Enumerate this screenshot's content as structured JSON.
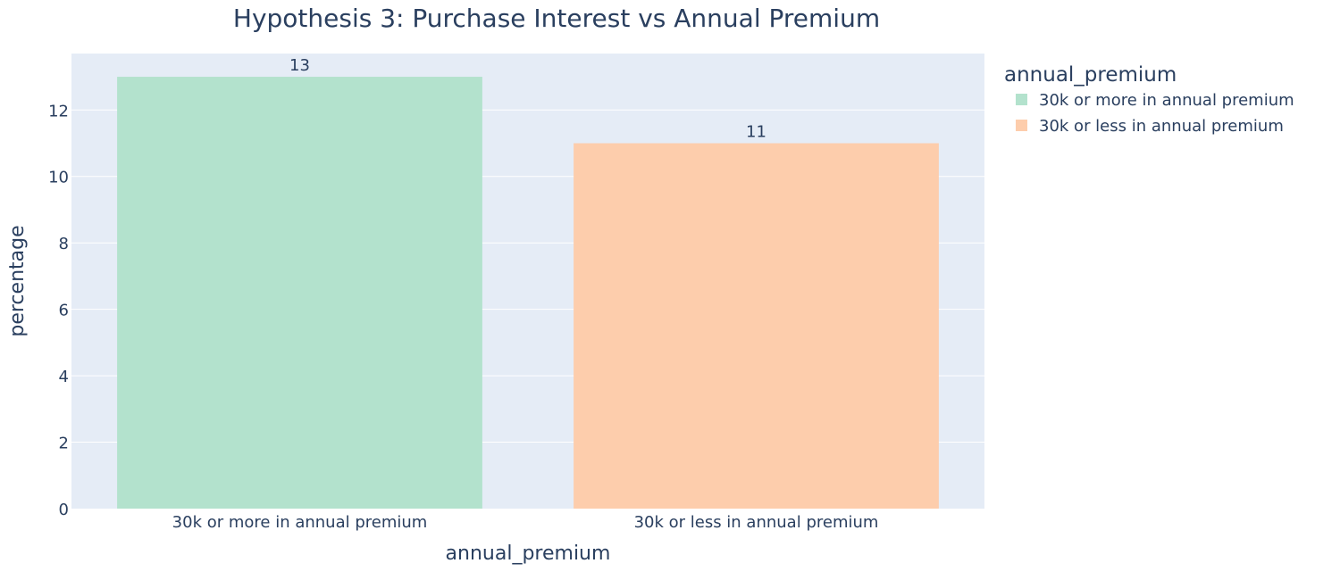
{
  "chart_data": {
    "type": "bar",
    "title": "Hypothesis 3: Purchase Interest vs Annual Premium",
    "xlabel": "annual_premium",
    "ylabel": "percentage",
    "categories": [
      "30k or more in annual premium",
      "30k or less in annual premium"
    ],
    "values": [
      13,
      11
    ],
    "data_labels": [
      "13",
      "11"
    ],
    "ylim": [
      0,
      13.7
    ],
    "yticks": [
      0,
      2,
      4,
      6,
      8,
      10,
      12
    ],
    "grid": true,
    "legend": {
      "title": "annual_premium",
      "placement": "top-right",
      "entries": [
        "30k or more in annual premium",
        "30k or less in annual premium"
      ]
    },
    "colors": [
      "#b3e2cd",
      "#fdcdac"
    ],
    "plot_background": "#e5ecf6",
    "grid_color": "#ffffff",
    "text_color": "#2a3f5f"
  }
}
